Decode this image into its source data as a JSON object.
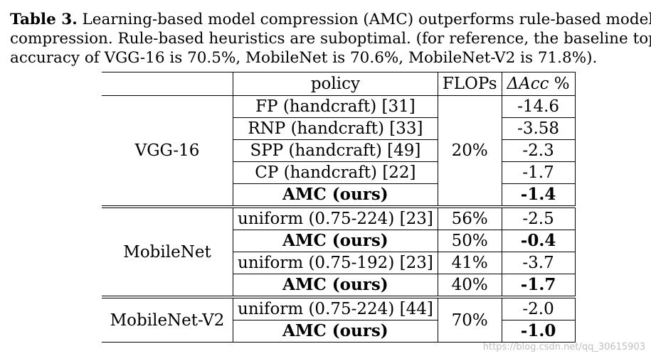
{
  "caption": {
    "label": "Table 3.",
    "line1": " Learning-based model compression (AMC) outperforms rule-based model",
    "line2": "compression. Rule-based heuristics are suboptimal. (for reference, the baseline top-1",
    "line3": "accuracy of VGG-16 is 70.5%, MobileNet is 70.6%, MobileNet-V2 is 71.8%)."
  },
  "table": {
    "headers": {
      "policy": "policy",
      "flops": "FLOPs",
      "acc_delta": "ΔAcc",
      "acc_unit": " %"
    },
    "groups": [
      {
        "network": "VGG-16",
        "rows": [
          {
            "policy": "FP (handcraft) [31]",
            "flops": "20%",
            "acc": "-14.6"
          },
          {
            "policy": "RNP (handcraft) [33]",
            "flops": "",
            "acc": "-3.58"
          },
          {
            "policy": "SPP (handcraft) [49]",
            "flops": "",
            "acc": "-2.3"
          },
          {
            "policy": "CP (handcraft) [22]",
            "flops": "",
            "acc": "-1.7"
          },
          {
            "policy": "AMC (ours)",
            "flops": "",
            "acc": "-1.4"
          }
        ]
      },
      {
        "network": "MobileNet",
        "rows": [
          {
            "policy": "uniform (0.75-224) [23]",
            "flops": "56%",
            "acc": "-2.5"
          },
          {
            "policy": "AMC (ours)",
            "flops": "50%",
            "acc": "-0.4"
          },
          {
            "policy": "uniform (0.75-192) [23]",
            "flops": "41%",
            "acc": "-3.7"
          },
          {
            "policy": "AMC (ours)",
            "flops": "40%",
            "acc": "-1.7"
          }
        ]
      },
      {
        "network": "MobileNet-V2",
        "rows": [
          {
            "policy": "uniform (0.75-224) [44]",
            "flops": "70%",
            "acc": "-2.0"
          },
          {
            "policy": "AMC (ours)",
            "flops": "",
            "acc": "-1.0"
          }
        ]
      }
    ]
  },
  "watermark": "https://blog.csdn.net/qq_30615903"
}
